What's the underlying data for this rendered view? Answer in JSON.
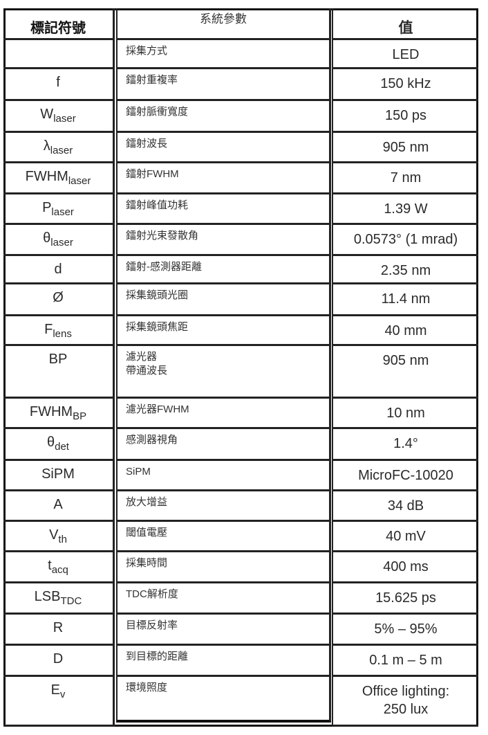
{
  "header": {
    "symbol": "標記符號",
    "parameter": "系統參數",
    "value": "值"
  },
  "rows": [
    {
      "symbol": "",
      "sub": "",
      "parameter": "採集方式",
      "value": "LED"
    },
    {
      "symbol": "f",
      "sub": "",
      "parameter": "鐳射重複率",
      "value": "150 kHz"
    },
    {
      "symbol": "W",
      "sub": "laser",
      "parameter": "鐳射脈衝寬度",
      "value": "150 ps"
    },
    {
      "symbol": "λ",
      "sub": "laser",
      "parameter": "鐳射波長",
      "value": "905 nm"
    },
    {
      "symbol": "FWHM",
      "sub": "laser",
      "parameter": "鐳射FWHM",
      "value": "7 nm"
    },
    {
      "symbol": "P",
      "sub": "laser",
      "parameter": "鐳射峰值功耗",
      "value": "1.39 W"
    },
    {
      "symbol": "θ",
      "sub": "laser",
      "parameter": "鐳射光束發散角",
      "value": "0.0573° (1 mrad)"
    },
    {
      "symbol": "d",
      "sub": "",
      "parameter": "鐳射-感測器距離",
      "value": "2.35 nm"
    },
    {
      "symbol": "Ø",
      "sub": "",
      "parameter": "採集鏡頭光圈",
      "value": "11.4 nm"
    },
    {
      "symbol": "F",
      "sub": "lens",
      "parameter": "採集鏡頭焦距",
      "value": "40 mm"
    },
    {
      "symbol": "BP",
      "sub": "",
      "parameter": "濾光器\n帶通波長",
      "value": "905 nm"
    },
    {
      "symbol": "FWHM",
      "sub": "BP",
      "parameter": "濾光器FWHM",
      "value": "10 nm"
    },
    {
      "symbol": "θ",
      "sub": "det",
      "parameter": "感測器視角",
      "value": "1.4°"
    },
    {
      "symbol": "SiPM",
      "sub": "",
      "parameter": "SiPM",
      "value": "MicroFC-10020"
    },
    {
      "symbol": "A",
      "sub": "",
      "parameter": "放大增益",
      "value": "34 dB"
    },
    {
      "symbol": "V",
      "sub": "th",
      "parameter": "閾值電壓",
      "value": "40 mV"
    },
    {
      "symbol": "t",
      "sub": "acq",
      "parameter": "採集時間",
      "value": "400 ms"
    },
    {
      "symbol": "LSB",
      "sub": "TDC",
      "parameter": "TDC解析度",
      "value": "15.625 ps"
    },
    {
      "symbol": "R",
      "sub": "",
      "parameter": "目標反射率",
      "value": "5% – 95%"
    },
    {
      "symbol": "D",
      "sub": "",
      "parameter": "到目標的距離",
      "value": "0.1 m – 5 m"
    },
    {
      "symbol": "E",
      "sub": "v",
      "parameter": "環境照度",
      "value": "Office lighting:\n250 lux"
    }
  ]
}
